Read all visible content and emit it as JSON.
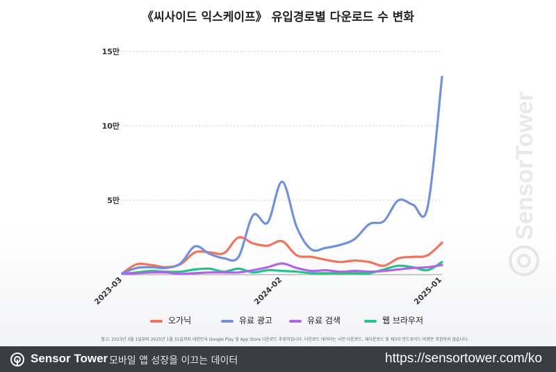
{
  "chart_data": {
    "type": "line",
    "title": "《씨사이드 익스케이프》 유입경로별 다운로드 수 변화",
    "yticks": [
      {
        "label": "15만",
        "value": 150000
      },
      {
        "label": "10만",
        "value": 100000
      },
      {
        "label": "5만",
        "value": 50000
      }
    ],
    "ylim": [
      0,
      150000
    ],
    "xlim": [
      0,
      22
    ],
    "xticks": [
      {
        "label": "2023-03",
        "index": 0
      },
      {
        "label": "2024-02",
        "index": 11
      },
      {
        "label": "2025-01",
        "index": 22
      }
    ],
    "grid": true,
    "series": [
      {
        "name": "오가닉",
        "color": "#f2725c",
        "values": [
          1000,
          7000,
          6500,
          5000,
          7000,
          15000,
          15000,
          14500,
          25000,
          21000,
          19500,
          22500,
          13000,
          12000,
          10000,
          8500,
          9500,
          8500,
          6000,
          11000,
          12000,
          13000,
          21500
        ]
      },
      {
        "name": "유료 광고",
        "color": "#7090de",
        "values": [
          1000,
          4500,
          5000,
          4500,
          7500,
          19000,
          14000,
          11000,
          12000,
          40000,
          35000,
          62500,
          32000,
          17000,
          18000,
          20000,
          24000,
          34000,
          36000,
          50000,
          47000,
          45000,
          133000
        ]
      },
      {
        "name": "유료 검색",
        "color": "#b065e8",
        "values": [
          500,
          1000,
          1500,
          1500,
          500,
          1000,
          1500,
          1500,
          1500,
          3000,
          5000,
          7500,
          4500,
          2500,
          3000,
          2000,
          2500,
          2000,
          2500,
          3500,
          4500,
          5000,
          6500
        ]
      },
      {
        "name": "웹 브라우저",
        "color": "#22c487",
        "values": [
          500,
          1500,
          2500,
          2000,
          2000,
          3500,
          4000,
          2000,
          4000,
          1500,
          3000,
          2500,
          2000,
          1000,
          1000,
          1000,
          1000,
          1000,
          3500,
          6000,
          5000,
          3000,
          8500
        ]
      }
    ]
  },
  "footnote": "참고: 2023년 3월 1일부터 2025년 1월 31일까지 대한민국 Google Play 및 App Store 다운로드 추정치입니다. 다운로드 데이터는 사전 다운로드, 재다운로드 및 제3자 안드로이드 마켓은 포함하지 않습니다.",
  "watermark": "SensorTower",
  "footer": {
    "brand": "Sensor Tower",
    "tagline": "모바일 앱 성장을 이끄는 데이터",
    "url": "https://sensortower.com/ko"
  }
}
